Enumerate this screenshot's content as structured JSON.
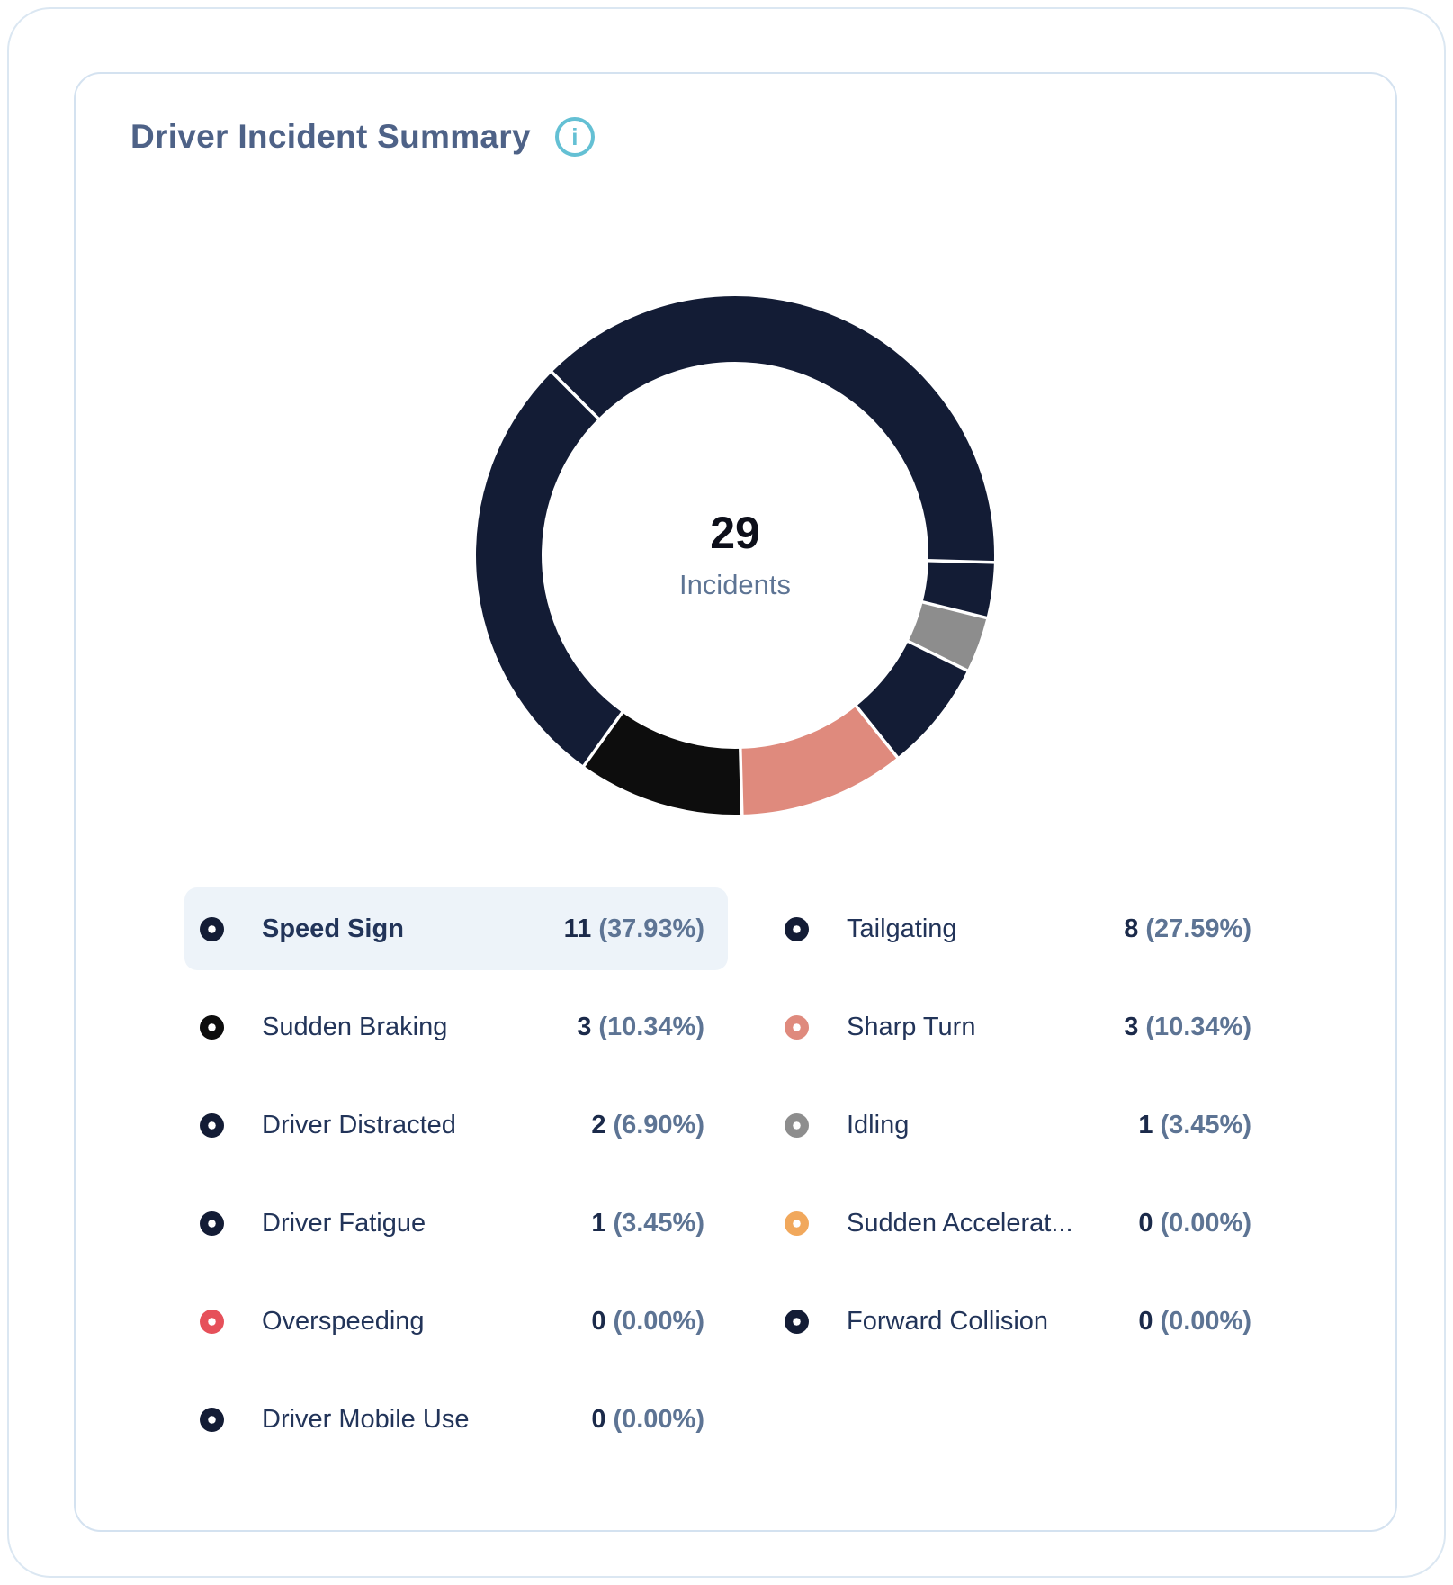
{
  "card": {
    "title": "Driver Incident Summary"
  },
  "colors": {
    "navy": "#131c35",
    "black": "#0d0d0d",
    "salmon": "#df8a7d",
    "gray": "#8d8d8d",
    "orange": "#f1a85c",
    "red": "#e6505a",
    "divider": "#ffffff",
    "title_text": "#4e6287",
    "info_accent": "#64c0d4",
    "highlight_bg": "#edf3f9"
  },
  "chart_data": {
    "type": "pie",
    "title": "Driver Incident Summary",
    "total": 29,
    "center_value": "29",
    "center_label": "Incidents",
    "start_angle_deg": -45,
    "direction": "clockwise",
    "outer_radius": 288,
    "inner_radius": 215,
    "segments": [
      {
        "label": "Speed Sign",
        "value": 11,
        "pct": 37.93,
        "color": "navy"
      },
      {
        "label": "Driver Mobile Use",
        "value": 0,
        "pct": 0.0,
        "color": "navy"
      },
      {
        "label": "Forward Collision",
        "value": 0,
        "pct": 0.0,
        "color": "navy"
      },
      {
        "label": "Overspeeding",
        "value": 0,
        "pct": 0.0,
        "color": "red"
      },
      {
        "label": "Sudden Accelerat...",
        "value": 0,
        "pct": 0.0,
        "color": "orange"
      },
      {
        "label": "Driver Fatigue",
        "value": 1,
        "pct": 3.45,
        "color": "navy"
      },
      {
        "label": "Idling",
        "value": 1,
        "pct": 3.45,
        "color": "gray"
      },
      {
        "label": "Driver Distracted",
        "value": 2,
        "pct": 6.9,
        "color": "navy"
      },
      {
        "label": "Sharp Turn",
        "value": 3,
        "pct": 10.34,
        "color": "salmon"
      },
      {
        "label": "Sudden Braking",
        "value": 3,
        "pct": 10.34,
        "color": "black"
      },
      {
        "label": "Tailgating",
        "value": 8,
        "pct": 27.59,
        "color": "navy"
      }
    ]
  },
  "legend": {
    "items": [
      {
        "label": "Speed Sign",
        "value": "11",
        "pct": "(37.93%)",
        "color": "navy",
        "highlighted": true
      },
      {
        "label": "Tailgating",
        "value": "8",
        "pct": "(27.59%)",
        "color": "navy",
        "highlighted": false
      },
      {
        "label": "Sudden Braking",
        "value": "3",
        "pct": "(10.34%)",
        "color": "black",
        "highlighted": false
      },
      {
        "label": "Sharp Turn",
        "value": "3",
        "pct": "(10.34%)",
        "color": "salmon",
        "highlighted": false
      },
      {
        "label": "Driver Distracted",
        "value": "2",
        "pct": "(6.90%)",
        "color": "navy",
        "highlighted": false
      },
      {
        "label": "Idling",
        "value": "1",
        "pct": "(3.45%)",
        "color": "gray",
        "highlighted": false
      },
      {
        "label": "Driver Fatigue",
        "value": "1",
        "pct": "(3.45%)",
        "color": "navy",
        "highlighted": false
      },
      {
        "label": "Sudden Accelerat...",
        "value": "0",
        "pct": "(0.00%)",
        "color": "orange",
        "highlighted": false
      },
      {
        "label": "Overspeeding",
        "value": "0",
        "pct": "(0.00%)",
        "color": "red",
        "highlighted": false
      },
      {
        "label": "Forward Collision",
        "value": "0",
        "pct": "(0.00%)",
        "color": "navy",
        "highlighted": false
      },
      {
        "label": "Driver Mobile Use",
        "value": "0",
        "pct": "(0.00%)",
        "color": "navy",
        "highlighted": false
      }
    ]
  }
}
